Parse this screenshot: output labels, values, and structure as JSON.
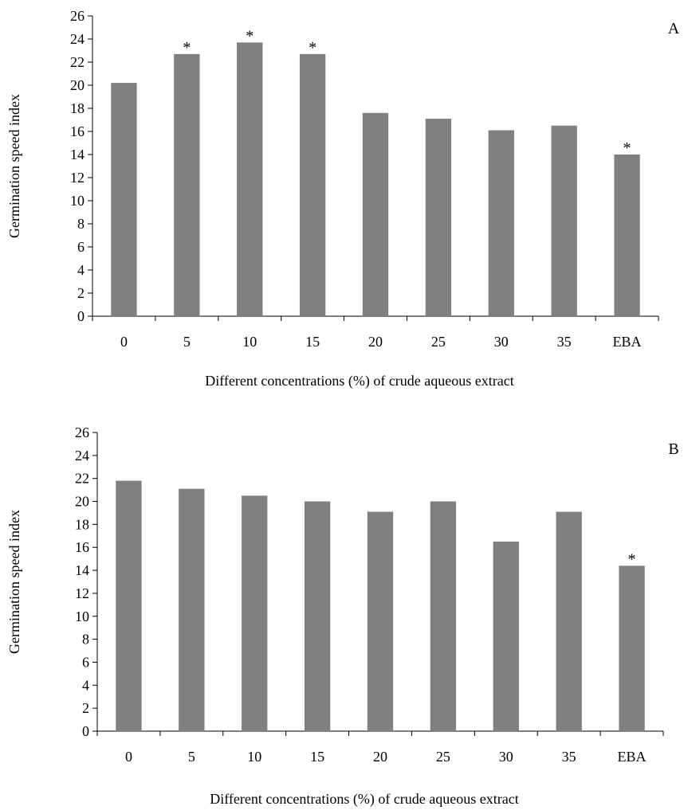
{
  "chart_data": [
    {
      "type": "bar",
      "panel_label": "A",
      "categories": [
        "0",
        "5",
        "10",
        "15",
        "20",
        "25",
        "30",
        "35",
        "EBA"
      ],
      "values": [
        20.2,
        22.7,
        23.7,
        22.7,
        17.6,
        17.1,
        16.1,
        16.5,
        14.0
      ],
      "significant": [
        false,
        true,
        true,
        true,
        false,
        false,
        false,
        false,
        true
      ],
      "marker": "*",
      "xlabel": "Different concentrations (%) of crude aqueous extract",
      "ylabel": "Germination speed index",
      "ylim": [
        0,
        26
      ],
      "yticks": [
        "0",
        "2",
        "4",
        "6",
        "8",
        "10",
        "12",
        "14",
        "16",
        "18",
        "20",
        "22",
        "24",
        "26"
      ],
      "bar_color": "#808080",
      "grid": false
    },
    {
      "type": "bar",
      "panel_label": "B",
      "categories": [
        "0",
        "5",
        "10",
        "15",
        "20",
        "25",
        "30",
        "35",
        "EBA"
      ],
      "values": [
        21.8,
        21.1,
        20.5,
        20.0,
        19.1,
        20.0,
        16.5,
        19.1,
        14.4
      ],
      "significant": [
        false,
        false,
        false,
        false,
        false,
        false,
        false,
        false,
        true
      ],
      "marker": "*",
      "xlabel": "Different concentrations (%) of crude aqueous extract",
      "ylabel": "Germination speed index",
      "ylim": [
        0,
        26
      ],
      "yticks": [
        "0",
        "2",
        "4",
        "6",
        "8",
        "10",
        "12",
        "14",
        "16",
        "18",
        "20",
        "22",
        "24",
        "26"
      ],
      "bar_color": "#808080",
      "grid": false
    }
  ]
}
